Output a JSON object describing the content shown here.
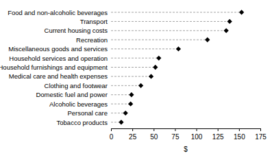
{
  "chart_data": {
    "type": "dot",
    "orientation": "horizontal",
    "marker": "diamond",
    "line_style": "dashed",
    "color": "#000000",
    "xlabel": "$",
    "categories": [
      "Food and non-alcoholic beverages",
      "Transport",
      "Current housing costs",
      "Recreation",
      "Miscellaneous goods and services",
      "Household services and operation",
      "Household furnishings and equipment",
      "Medical care and health expenses",
      "Clothing and footwear",
      "Domestic fuel and power",
      "Alcoholic beverages",
      "Personal care",
      "Tobacco products"
    ],
    "values": [
      153,
      139,
      135,
      113,
      79,
      56,
      52,
      47,
      35,
      24,
      23,
      17,
      12
    ],
    "xlim": [
      0,
      175
    ],
    "xticks": [
      0,
      25,
      50,
      75,
      100,
      125,
      150,
      175
    ],
    "grid": false
  }
}
